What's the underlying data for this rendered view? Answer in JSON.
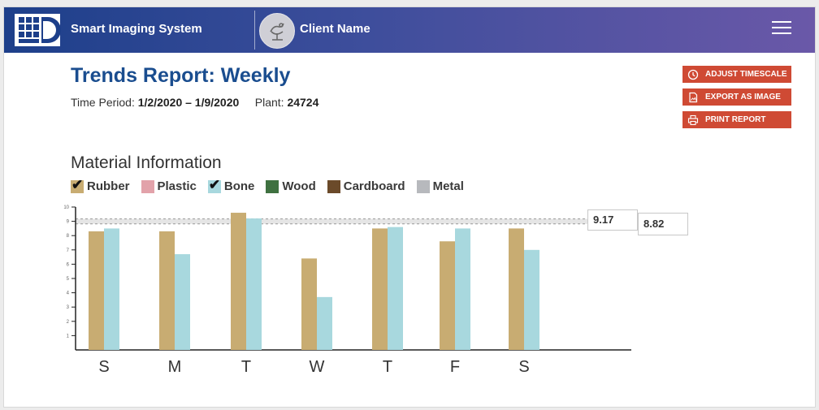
{
  "header": {
    "app_title": "Smart Imaging System",
    "client_name": "Client Name"
  },
  "report": {
    "title": "Trends Report: Weekly",
    "time_period_label": "Time Period:",
    "time_period_value": "1/2/2020 – 1/9/2020",
    "plant_label": "Plant:",
    "plant_value": "24724"
  },
  "actions": {
    "adjust_timescale": "ADJUST TIMESCALE",
    "export_image": "EXPORT AS IMAGE",
    "print_report": "PRINT REPORT"
  },
  "section_title": "Material Information",
  "legend": [
    {
      "label": "Rubber",
      "color": "#c8ac72",
      "checked": true
    },
    {
      "label": "Plastic",
      "color": "#e2a2aa",
      "checked": false
    },
    {
      "label": "Bone",
      "color": "#a8d8de",
      "checked": true
    },
    {
      "label": "Wood",
      "color": "#3f7140",
      "checked": false
    },
    {
      "label": "Cardboard",
      "color": "#6b4a2a",
      "checked": false
    },
    {
      "label": "Metal",
      "color": "#b7b9bd",
      "checked": false
    }
  ],
  "chart_data": {
    "type": "bar",
    "categories": [
      "S",
      "M",
      "T",
      "W",
      "T",
      "F",
      "S"
    ],
    "series": [
      {
        "name": "Rubber",
        "color": "#c8ac72",
        "values": [
          8.3,
          8.3,
          9.6,
          6.4,
          8.5,
          7.6,
          8.5
        ]
      },
      {
        "name": "Bone",
        "color": "#a8d8de",
        "values": [
          8.5,
          6.7,
          9.2,
          3.7,
          8.6,
          8.5,
          7.0
        ]
      }
    ],
    "ylim": [
      0,
      10
    ],
    "yticks": [
      1,
      2,
      3,
      4,
      5,
      6,
      7,
      8,
      9,
      10
    ],
    "band": {
      "upper": 9.17,
      "lower": 8.82
    },
    "upper_label": "9.17",
    "lower_label": "8.82",
    "title": "Material Information",
    "xlabel": "",
    "ylabel": ""
  }
}
